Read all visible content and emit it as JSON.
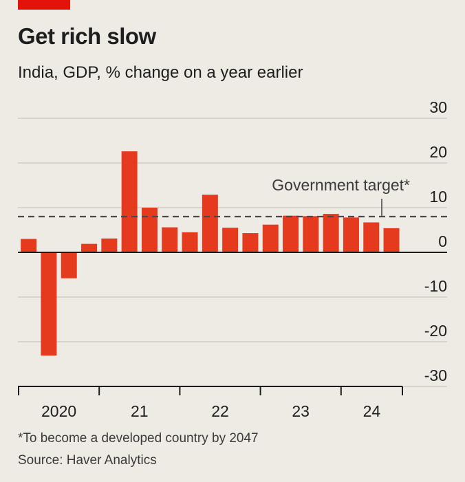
{
  "header": {
    "title": "Get rich slow",
    "subtitle": "India, GDP, % change on a year earlier"
  },
  "footer": {
    "footnote": "*To become a developed country by 2047",
    "source": "Source: Haver Analytics"
  },
  "colors": {
    "accent": "#e3120b",
    "bar": "#e63a1f",
    "background": "#edebe4",
    "grid": "#c9c6bd",
    "text": "#1e1e1e"
  },
  "chart_data": {
    "type": "bar",
    "title": "Get rich slow",
    "subtitle": "India, GDP, % change on a year earlier",
    "xlabel": "",
    "ylabel": "",
    "ylim": [
      -30,
      30
    ],
    "yticks": [
      30,
      20,
      10,
      0,
      -10,
      -20,
      -30
    ],
    "ytick_labels": [
      "30",
      "20",
      "10",
      "0",
      "-10",
      "-20",
      "-30"
    ],
    "grid": true,
    "y_axis_side": "right",
    "x_year_labels": [
      "2020",
      "21",
      "22",
      "23",
      "24"
    ],
    "categories": [
      "2020 Q1",
      "2020 Q2",
      "2020 Q3",
      "2020 Q4",
      "2021 Q1",
      "2021 Q2",
      "2021 Q3",
      "2021 Q4",
      "2022 Q1",
      "2022 Q2",
      "2022 Q3",
      "2022 Q4",
      "2023 Q1",
      "2023 Q2",
      "2023 Q3",
      "2023 Q4",
      "2024 Q1",
      "2024 Q2",
      "2024 Q3"
    ],
    "values": [
      3.0,
      -23.1,
      -5.8,
      1.9,
      3.1,
      22.6,
      10.0,
      5.6,
      4.5,
      12.9,
      5.5,
      4.3,
      6.2,
      8.2,
      8.1,
      8.6,
      7.8,
      6.7,
      5.4
    ],
    "reference_line": {
      "value": 8,
      "label": "Government target*",
      "style": "dashed"
    }
  }
}
